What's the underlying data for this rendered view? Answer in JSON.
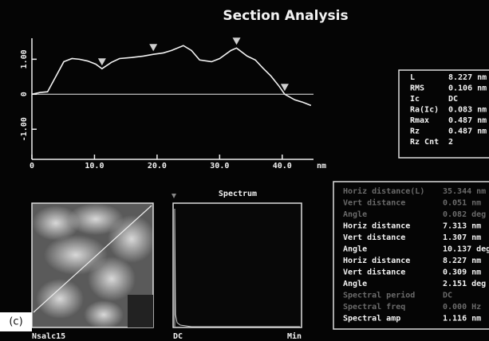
{
  "title": "Section Analysis",
  "chart_data": {
    "type": "line",
    "x_unit": "nm",
    "x": [
      0,
      1.3,
      2.5,
      3.8,
      5.1,
      6.4,
      7.6,
      8.9,
      10.2,
      11.2,
      12.7,
      14,
      15.9,
      17.8,
      19.4,
      21,
      22.3,
      24.2,
      25.5,
      26.8,
      28.7,
      30,
      31.8,
      32.7,
      34.4,
      35.7,
      36.9,
      38.2,
      39.5,
      40.4,
      42,
      43.3,
      44.6
    ],
    "values": [
      0,
      0.05,
      0.07,
      0.5,
      0.93,
      1.02,
      1.0,
      0.95,
      0.86,
      0.73,
      0.91,
      1.02,
      1.05,
      1.09,
      1.14,
      1.18,
      1.25,
      1.39,
      1.25,
      0.98,
      0.93,
      1.02,
      1.25,
      1.32,
      1.09,
      0.98,
      0.75,
      0.52,
      0.23,
      0,
      -0.16,
      -0.23,
      -0.32
    ],
    "cursors": [
      11.2,
      19.4,
      32.7,
      40.4
    ],
    "color": "#f2f2f2",
    "xlim": [
      0,
      45
    ],
    "xticks": [
      {
        "value": 0,
        "label": "0"
      },
      {
        "value": 10,
        "label": "10.0"
      },
      {
        "value": 20,
        "label": "20.0"
      },
      {
        "value": 30,
        "label": "30.0"
      },
      {
        "value": 40,
        "label": "40.0"
      }
    ],
    "ylim": [
      -1.86,
      1.6
    ],
    "yticks": [
      {
        "value": 1,
        "label": "1.00"
      },
      {
        "value": 0,
        "label": "0"
      },
      {
        "value": -1,
        "label": "-1.00"
      }
    ]
  },
  "stats": [
    [
      "L",
      "8.227 nm"
    ],
    [
      "RMS",
      "0.106 nm"
    ],
    [
      "Ic",
      "DC"
    ],
    [
      "Ra(Ic)",
      "0.083 nm"
    ],
    [
      "Rmax",
      "0.487 nm"
    ],
    [
      "Rz",
      "0.487 nm"
    ],
    [
      "Rz Cnt",
      "2"
    ]
  ],
  "measurements": [
    {
      "label": "Horiz distance(L)",
      "value": "35.344 nm",
      "dim": true
    },
    {
      "label": "Vert distance",
      "value": "0.051 nm",
      "dim": true
    },
    {
      "label": "Angle",
      "value": "0.082 deg",
      "dim": true
    },
    {
      "label": "Horiz distance",
      "value": "7.313 nm",
      "dim": false
    },
    {
      "label": "Vert distance",
      "value": "1.307 nm",
      "dim": false
    },
    {
      "label": "Angle",
      "value": "10.137 deg",
      "dim": false
    },
    {
      "label": "Horiz distance",
      "value": "8.227 nm",
      "dim": false
    },
    {
      "label": "Vert distance",
      "value": "0.309 nm",
      "dim": false
    },
    {
      "label": "Angle",
      "value": "2.151 deg",
      "dim": false
    },
    {
      "label": "Spectral period",
      "value": "DC",
      "dim": true
    },
    {
      "label": "Spectral freq",
      "value": "0.000 Hz",
      "dim": true
    },
    {
      "label": "Spectral amp",
      "value": "1.116 nm",
      "dim": false
    }
  ],
  "image_panel": {
    "tag": "(c)",
    "caption": "Nsalc15"
  },
  "spectrum_panel": {
    "title": "Spectrum",
    "left_label": "DC",
    "right_label": "Min"
  }
}
